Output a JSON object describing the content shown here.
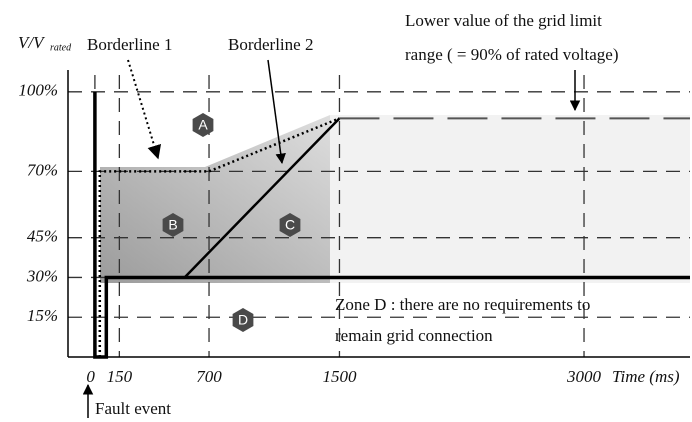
{
  "chart_data": {
    "type": "line",
    "y_label": "V/V",
    "y_label_sub": "rated",
    "x_label": "Time (ms)",
    "xlim": [
      -165,
      3650
    ],
    "ylim": [
      0,
      112
    ],
    "xticks": [
      0,
      150,
      700,
      1500,
      3000
    ],
    "yticks": [
      {
        "value": 100,
        "label": "100%"
      },
      {
        "value": 70,
        "label": "70%"
      },
      {
        "value": 45,
        "label": "45%"
      },
      {
        "value": 30,
        "label": "30%"
      },
      {
        "value": 15,
        "label": "15%"
      }
    ],
    "grid": true,
    "series": [
      {
        "name": "Borderline 1",
        "color": "#000000",
        "style": "dotted",
        "x": [
          30,
          30,
          700,
          1500
        ],
        "values": [
          0,
          70,
          70,
          90
        ]
      },
      {
        "name": "Borderline 2",
        "color": "#000000",
        "style": "solid",
        "x": [
          150,
          550,
          1500
        ],
        "values": [
          30,
          30,
          90
        ]
      },
      {
        "color": "#000000",
        "style": "thick",
        "x": [
          0,
          0,
          70,
          70,
          3650
        ],
        "values": [
          100,
          0,
          0,
          30,
          30
        ]
      },
      {
        "color": "#555555",
        "style": "longdash",
        "x": [
          1500,
          3650
        ],
        "values": [
          90,
          90
        ]
      }
    ],
    "zones": [
      "A",
      "B",
      "C",
      "D"
    ],
    "annotations": [
      "Lower value of the grid limit",
      "range ( = 90% of rated voltage)",
      "Zone D : there are no requirements to",
      "remain grid connection",
      "Fault event"
    ]
  }
}
